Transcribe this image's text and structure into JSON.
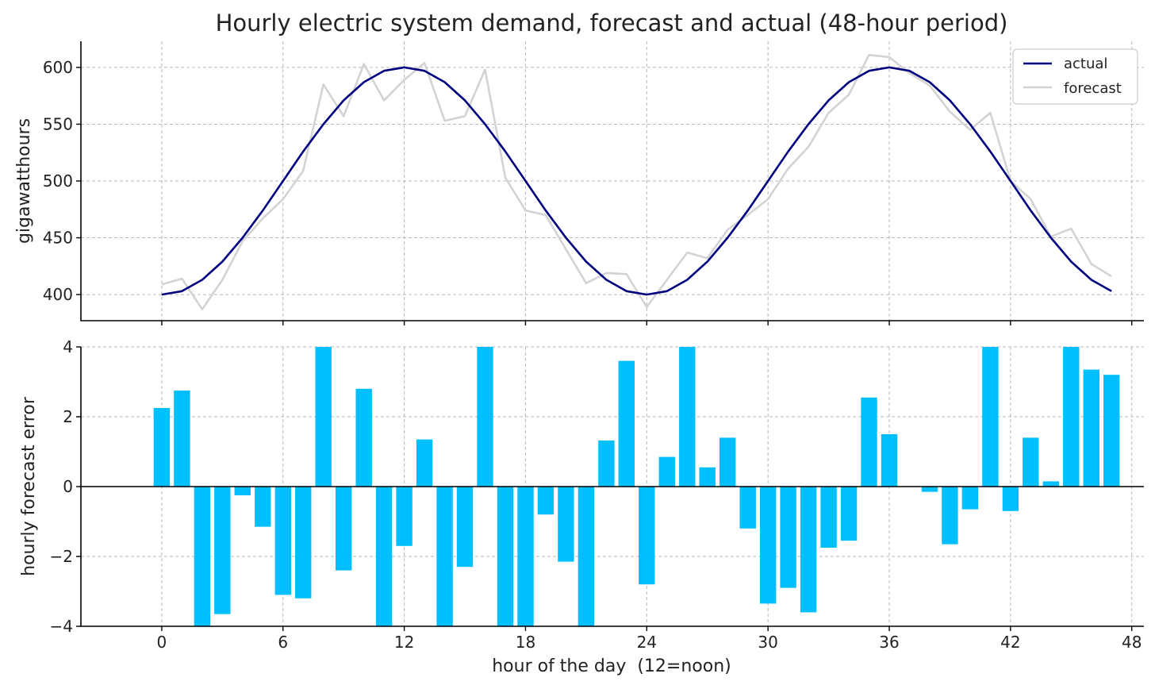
{
  "colors": {
    "actual": "#000080",
    "forecast": "#d3d3d3",
    "error_bars": "#00bfff",
    "grid": "#b8b8b8",
    "axes": "#000000",
    "zero_line": "#000000"
  },
  "chart_data": [
    {
      "type": "line",
      "title": "Hourly electric system demand, forecast and actual (48-hour period)",
      "xlabel": "",
      "ylabel": "gigawatthours",
      "xlim": [
        -4,
        48.6
      ],
      "ylim": [
        377,
        623
      ],
      "xticks": [
        0,
        6,
        12,
        18,
        24,
        30,
        36,
        42,
        48
      ],
      "yticks": [
        400,
        450,
        500,
        550,
        600
      ],
      "ytick_labels": [
        "400",
        "450",
        "500",
        "550",
        "600"
      ],
      "grid": true,
      "legend_position": "top-right",
      "x": [
        0,
        1,
        2,
        3,
        4,
        5,
        6,
        7,
        8,
        9,
        10,
        11,
        12,
        13,
        14,
        15,
        16,
        17,
        18,
        19,
        20,
        21,
        22,
        23,
        24,
        25,
        26,
        27,
        28,
        29,
        30,
        31,
        32,
        33,
        34,
        35,
        36,
        37,
        38,
        39,
        40,
        41,
        42,
        43,
        44,
        45,
        46,
        47
      ],
      "series": [
        {
          "name": "actual",
          "values": [
            400,
            403,
            413,
            429,
            450,
            474,
            500,
            526,
            550,
            571,
            587,
            597,
            600,
            597,
            587,
            571,
            550,
            526,
            500,
            474,
            450,
            429,
            413,
            403,
            400,
            403,
            413,
            429,
            450,
            474,
            500,
            526,
            550,
            571,
            587,
            597,
            600,
            597,
            587,
            571,
            550,
            526,
            500,
            474,
            450,
            429,
            413,
            403
          ]
        },
        {
          "name": "forecast",
          "values": [
            409,
            414,
            387,
            413,
            447,
            467,
            484,
            509,
            585,
            557,
            603,
            571,
            589,
            604,
            553,
            557,
            598,
            503,
            474,
            470,
            440,
            410,
            419,
            418,
            389,
            413,
            437,
            432,
            457,
            470,
            484,
            511,
            530,
            560,
            576,
            611,
            609,
            595,
            584,
            561,
            545,
            560,
            500,
            484,
            451,
            458,
            427,
            416
          ]
        }
      ]
    },
    {
      "type": "bar",
      "title": "",
      "xlabel": "hour of the day  (12=noon)",
      "ylabel": "hourly forecast error",
      "xlim": [
        -4,
        48.6
      ],
      "ylim": [
        -4,
        4
      ],
      "xticks": [
        0,
        6,
        12,
        18,
        24,
        30,
        36,
        42,
        48
      ],
      "yticks": [
        -4,
        -2,
        0,
        2,
        4
      ],
      "ytick_labels": [
        "−4",
        "−2",
        "0",
        "2",
        "4"
      ],
      "grid": true,
      "x": [
        0,
        1,
        2,
        3,
        4,
        5,
        6,
        7,
        8,
        9,
        10,
        11,
        12,
        13,
        14,
        15,
        16,
        17,
        18,
        19,
        20,
        21,
        22,
        23,
        24,
        25,
        26,
        27,
        28,
        29,
        30,
        31,
        32,
        33,
        34,
        35,
        36,
        37,
        38,
        39,
        40,
        41,
        42,
        43,
        44,
        45,
        46,
        47
      ],
      "values": [
        2.25,
        2.75,
        -4,
        -3.65,
        -0.25,
        -1.15,
        -3.1,
        -3.2,
        4,
        -2.4,
        2.8,
        -4,
        -1.7,
        1.35,
        -4,
        -2.3,
        4,
        -4,
        -4,
        -0.8,
        -2.15,
        -4,
        1.32,
        3.6,
        -2.8,
        0.85,
        4,
        0.55,
        1.4,
        -1.2,
        -3.35,
        -2.9,
        -3.6,
        -1.75,
        -1.55,
        2.55,
        1.5,
        0,
        -0.15,
        -1.65,
        -0.65,
        4,
        -0.7,
        1.4,
        0.15,
        4,
        3.35,
        3.2
      ]
    }
  ]
}
